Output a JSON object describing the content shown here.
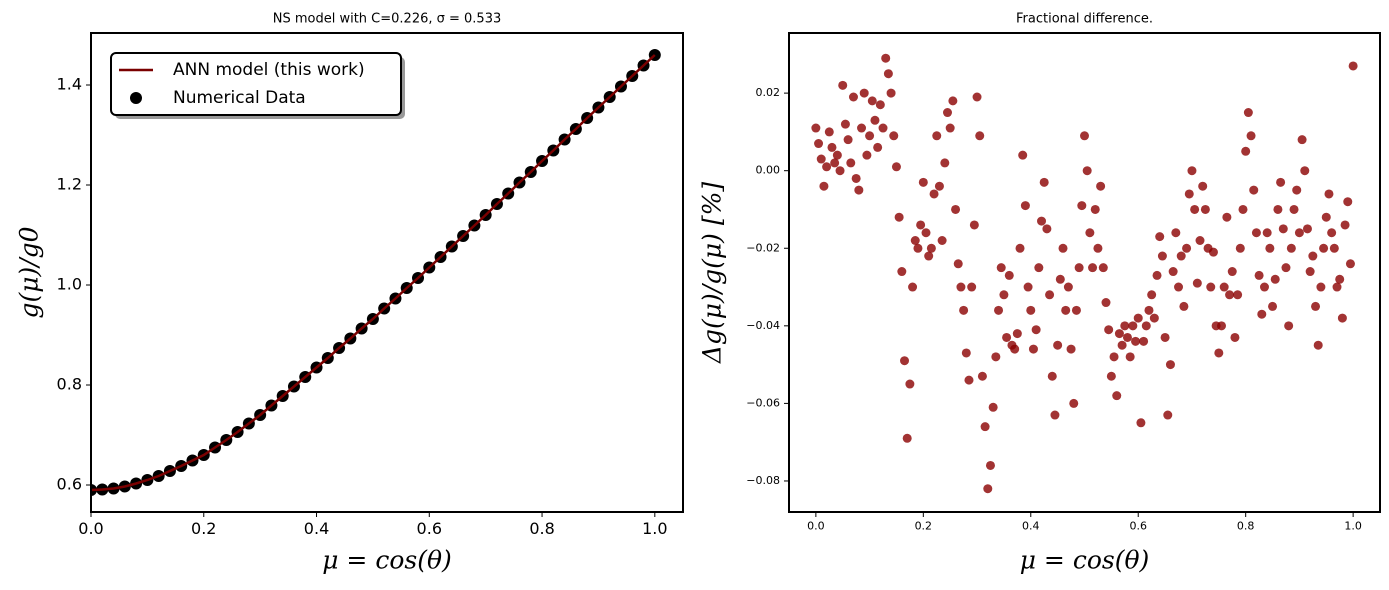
{
  "chart_data": [
    {
      "type": "line",
      "title": "NS model with C=0.226, σ = 0.533",
      "xlabel": "μ = cos(θ)",
      "ylabel": "g(μ)/g0",
      "xlim": [
        0,
        1.05
      ],
      "ylim": [
        0.546,
        1.504
      ],
      "xticks": [
        {
          "value": 0,
          "label": "0.0"
        },
        0.2,
        0.4,
        0.6,
        0.8,
        {
          "value": 1,
          "label": "1.0"
        }
      ],
      "yticks": [
        0.6,
        0.8,
        {
          "value": 1,
          "label": "1.0"
        },
        1.2,
        1.4
      ],
      "legend": "upper left",
      "series": [
        {
          "name": "ANN model (this work)",
          "type": "line",
          "color": "#7a0000",
          "x": [
            0,
            0.02,
            0.04,
            0.06,
            0.08,
            0.1,
            0.12,
            0.14,
            0.16,
            0.18,
            0.2,
            0.22,
            0.24,
            0.26,
            0.28,
            0.3,
            0.32,
            0.34,
            0.36,
            0.38,
            0.4,
            0.42,
            0.44,
            0.46,
            0.48,
            0.5,
            0.52,
            0.54,
            0.56,
            0.58,
            0.6,
            0.62,
            0.64,
            0.66,
            0.68,
            0.7,
            0.72,
            0.74,
            0.76,
            0.78,
            0.8,
            0.82,
            0.84,
            0.86,
            0.88,
            0.9,
            0.92,
            0.94,
            0.96,
            0.98,
            1.0
          ],
          "values": [
            0.59,
            0.591,
            0.593,
            0.597,
            0.603,
            0.61,
            0.618,
            0.628,
            0.638,
            0.649,
            0.66,
            0.675,
            0.69,
            0.706,
            0.723,
            0.74,
            0.759,
            0.778,
            0.797,
            0.816,
            0.835,
            0.854,
            0.874,
            0.893,
            0.913,
            0.932,
            0.953,
            0.973,
            0.994,
            1.014,
            1.035,
            1.056,
            1.077,
            1.098,
            1.119,
            1.14,
            1.162,
            1.183,
            1.205,
            1.226,
            1.248,
            1.269,
            1.291,
            1.312,
            1.334,
            1.355,
            1.376,
            1.397,
            1.418,
            1.439,
            1.46
          ]
        },
        {
          "name": "Numerical Data",
          "type": "scatter",
          "color": "#000000",
          "x": [
            0,
            0.02,
            0.04,
            0.06,
            0.08,
            0.1,
            0.12,
            0.14,
            0.16,
            0.18,
            0.2,
            0.22,
            0.24,
            0.26,
            0.28,
            0.3,
            0.32,
            0.34,
            0.36,
            0.38,
            0.4,
            0.42,
            0.44,
            0.46,
            0.48,
            0.5,
            0.52,
            0.54,
            0.56,
            0.58,
            0.6,
            0.62,
            0.64,
            0.66,
            0.68,
            0.7,
            0.72,
            0.74,
            0.76,
            0.78,
            0.8,
            0.82,
            0.84,
            0.86,
            0.88,
            0.9,
            0.92,
            0.94,
            0.96,
            0.98,
            1.0
          ],
          "values": [
            0.59,
            0.591,
            0.593,
            0.597,
            0.603,
            0.61,
            0.618,
            0.628,
            0.638,
            0.649,
            0.66,
            0.675,
            0.69,
            0.706,
            0.723,
            0.74,
            0.759,
            0.778,
            0.797,
            0.816,
            0.835,
            0.854,
            0.874,
            0.893,
            0.913,
            0.932,
            0.953,
            0.973,
            0.994,
            1.014,
            1.035,
            1.056,
            1.077,
            1.098,
            1.119,
            1.14,
            1.162,
            1.183,
            1.205,
            1.226,
            1.248,
            1.269,
            1.291,
            1.312,
            1.334,
            1.355,
            1.376,
            1.397,
            1.418,
            1.439,
            1.46
          ]
        }
      ]
    },
    {
      "type": "scatter",
      "title": "Fractional difference.",
      "xlabel": "μ = cos(θ)",
      "ylabel": "Δg(μ)/g(μ)  [%]",
      "xlim": [
        -0.05,
        1.05
      ],
      "ylim": [
        -0.088,
        0.0355
      ],
      "xticks": [
        {
          "value": 0,
          "label": "0.0"
        },
        0.2,
        0.4,
        0.6,
        0.8,
        {
          "value": 1,
          "label": "1.0"
        }
      ],
      "yticks": [
        {
          "value": -0.08,
          "label": "−0.08"
        },
        {
          "value": -0.06,
          "label": "−0.06"
        },
        {
          "value": -0.04,
          "label": "−0.04"
        },
        {
          "value": -0.02,
          "label": "−0.02"
        },
        {
          "value": 0,
          "label": "0.00"
        },
        0.02
      ],
      "series": [
        {
          "type": "scatter",
          "color": "#8b0000",
          "x": [
            0,
            0.005,
            0.01,
            0.015,
            0.02,
            0.025,
            0.03,
            0.035,
            0.04,
            0.045,
            0.05,
            0.055,
            0.06,
            0.065,
            0.07,
            0.075,
            0.08,
            0.085,
            0.09,
            0.095,
            0.1,
            0.105,
            0.11,
            0.115,
            0.12,
            0.125,
            0.13,
            0.135,
            0.14,
            0.145,
            0.15,
            0.155,
            0.16,
            0.165,
            0.17,
            0.175,
            0.18,
            0.185,
            0.19,
            0.195,
            0.2,
            0.205,
            0.21,
            0.215,
            0.22,
            0.225,
            0.23,
            0.235,
            0.24,
            0.245,
            0.25,
            0.255,
            0.26,
            0.265,
            0.27,
            0.275,
            0.28,
            0.285,
            0.29,
            0.295,
            0.3,
            0.305,
            0.31,
            0.315,
            0.32,
            0.325,
            0.33,
            0.335,
            0.34,
            0.345,
            0.35,
            0.355,
            0.36,
            0.365,
            0.37,
            0.375,
            0.38,
            0.385,
            0.39,
            0.395,
            0.4,
            0.405,
            0.41,
            0.415,
            0.42,
            0.425,
            0.43,
            0.435,
            0.44,
            0.445,
            0.45,
            0.455,
            0.46,
            0.465,
            0.47,
            0.475,
            0.48,
            0.485,
            0.49,
            0.495,
            0.5,
            0.505,
            0.51,
            0.515,
            0.52,
            0.525,
            0.53,
            0.535,
            0.54,
            0.545,
            0.55,
            0.555,
            0.56,
            0.565,
            0.57,
            0.575,
            0.58,
            0.585,
            0.59,
            0.595,
            0.6,
            0.605,
            0.61,
            0.615,
            0.62,
            0.625,
            0.63,
            0.635,
            0.64,
            0.645,
            0.65,
            0.655,
            0.66,
            0.665,
            0.67,
            0.675,
            0.68,
            0.685,
            0.69,
            0.695,
            0.7,
            0.705,
            0.71,
            0.715,
            0.72,
            0.725,
            0.73,
            0.735,
            0.74,
            0.745,
            0.75,
            0.755,
            0.76,
            0.765,
            0.77,
            0.775,
            0.78,
            0.785,
            0.79,
            0.795,
            0.8,
            0.805,
            0.81,
            0.815,
            0.82,
            0.825,
            0.83,
            0.835,
            0.84,
            0.845,
            0.85,
            0.855,
            0.86,
            0.865,
            0.87,
            0.875,
            0.88,
            0.885,
            0.89,
            0.895,
            0.9,
            0.905,
            0.91,
            0.915,
            0.92,
            0.925,
            0.93,
            0.935,
            0.94,
            0.945,
            0.95,
            0.955,
            0.96,
            0.965,
            0.97,
            0.975,
            0.98,
            0.985,
            0.99,
            0.995,
            1.0
          ],
          "values": [
            0.011,
            0.007,
            0.003,
            -0.004,
            0.001,
            0.01,
            0.006,
            0.002,
            0.004,
            0.0,
            0.022,
            0.012,
            0.008,
            0.002,
            0.019,
            -0.002,
            -0.005,
            0.011,
            0.02,
            0.004,
            0.009,
            0.018,
            0.013,
            0.006,
            0.017,
            0.011,
            0.029,
            0.025,
            0.02,
            0.009,
            0.001,
            -0.012,
            -0.026,
            -0.049,
            -0.069,
            -0.055,
            -0.03,
            -0.018,
            -0.02,
            -0.014,
            -0.003,
            -0.016,
            -0.022,
            -0.02,
            -0.006,
            0.009,
            -0.004,
            -0.018,
            0.002,
            0.015,
            0.011,
            0.018,
            -0.01,
            -0.024,
            -0.03,
            -0.036,
            -0.047,
            -0.054,
            -0.03,
            -0.014,
            0.019,
            0.009,
            -0.053,
            -0.066,
            -0.082,
            -0.076,
            -0.061,
            -0.048,
            -0.036,
            -0.025,
            -0.032,
            -0.043,
            -0.027,
            -0.045,
            -0.046,
            -0.042,
            -0.02,
            0.004,
            -0.009,
            -0.03,
            -0.036,
            -0.046,
            -0.041,
            -0.025,
            -0.013,
            -0.003,
            -0.015,
            -0.032,
            -0.053,
            -0.063,
            -0.045,
            -0.028,
            -0.02,
            -0.036,
            -0.03,
            -0.046,
            -0.06,
            -0.036,
            -0.025,
            -0.009,
            0.009,
            0.0,
            -0.016,
            -0.025,
            -0.01,
            -0.02,
            -0.004,
            -0.025,
            -0.034,
            -0.041,
            -0.053,
            -0.048,
            -0.058,
            -0.042,
            -0.045,
            -0.04,
            -0.043,
            -0.048,
            -0.04,
            -0.044,
            -0.038,
            -0.065,
            -0.044,
            -0.04,
            -0.036,
            -0.032,
            -0.038,
            -0.027,
            -0.017,
            -0.022,
            -0.043,
            -0.063,
            -0.05,
            -0.026,
            -0.016,
            -0.03,
            -0.022,
            -0.035,
            -0.02,
            -0.006,
            0.0,
            -0.01,
            -0.029,
            -0.018,
            -0.004,
            -0.01,
            -0.02,
            -0.03,
            -0.021,
            -0.04,
            -0.047,
            -0.04,
            -0.03,
            -0.012,
            -0.032,
            -0.026,
            -0.043,
            -0.032,
            -0.02,
            -0.01,
            0.005,
            0.015,
            0.009,
            -0.005,
            -0.016,
            -0.027,
            -0.037,
            -0.03,
            -0.016,
            -0.02,
            -0.035,
            -0.028,
            -0.01,
            -0.003,
            -0.015,
            -0.025,
            -0.04,
            -0.02,
            -0.01,
            -0.005,
            -0.016,
            0.008,
            0.0,
            -0.015,
            -0.026,
            -0.022,
            -0.035,
            -0.045,
            -0.03,
            -0.02,
            -0.012,
            -0.006,
            -0.016,
            -0.02,
            -0.03,
            -0.028,
            -0.038,
            -0.014,
            -0.008,
            -0.024,
            0.027
          ]
        }
      ]
    }
  ]
}
